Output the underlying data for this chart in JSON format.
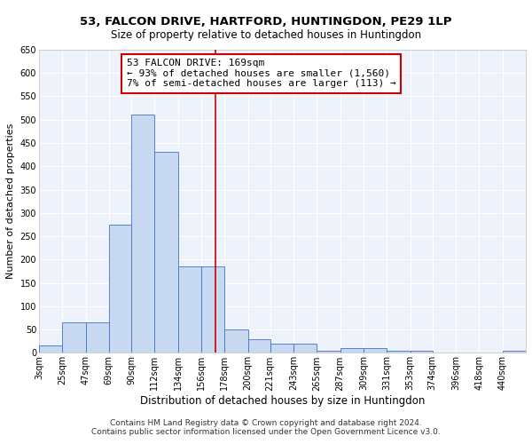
{
  "title": "53, FALCON DRIVE, HARTFORD, HUNTINGDON, PE29 1LP",
  "subtitle": "Size of property relative to detached houses in Huntingdon",
  "xlabel": "Distribution of detached houses by size in Huntingdon",
  "ylabel": "Number of detached properties",
  "footnote1": "Contains HM Land Registry data © Crown copyright and database right 2024.",
  "footnote2": "Contains public sector information licensed under the Open Government Licence v3.0.",
  "annotation_line1": "53 FALCON DRIVE: 169sqm",
  "annotation_line2": "← 93% of detached houses are smaller (1,560)",
  "annotation_line3": "7% of semi-detached houses are larger (113) →",
  "bar_left_edges": [
    3,
    25,
    47,
    69,
    90,
    112,
    134,
    156,
    178,
    200,
    221,
    243,
    265,
    287,
    309,
    331,
    353,
    374,
    396,
    418,
    440
  ],
  "bar_heights": [
    15,
    65,
    65,
    275,
    510,
    430,
    185,
    185,
    50,
    30,
    20,
    20,
    5,
    10,
    10,
    5,
    5,
    0,
    0,
    0,
    5
  ],
  "bar_color": "#c6d9f0",
  "bar_edge_color": "#4472c4",
  "vline_color": "#cc0000",
  "vline_x": 169,
  "annotation_box_color": "#cc0000",
  "ylim": [
    0,
    650
  ],
  "yticks": [
    0,
    50,
    100,
    150,
    200,
    250,
    300,
    350,
    400,
    450,
    500,
    550,
    600,
    650
  ],
  "bg_color": "#eef3fb",
  "grid_color": "#ffffff",
  "title_fontsize": 9.5,
  "subtitle_fontsize": 8.5,
  "ylabel_fontsize": 8,
  "xlabel_fontsize": 8.5,
  "tick_fontsize": 7,
  "annotation_fontsize": 8,
  "footnote_fontsize": 6.5
}
